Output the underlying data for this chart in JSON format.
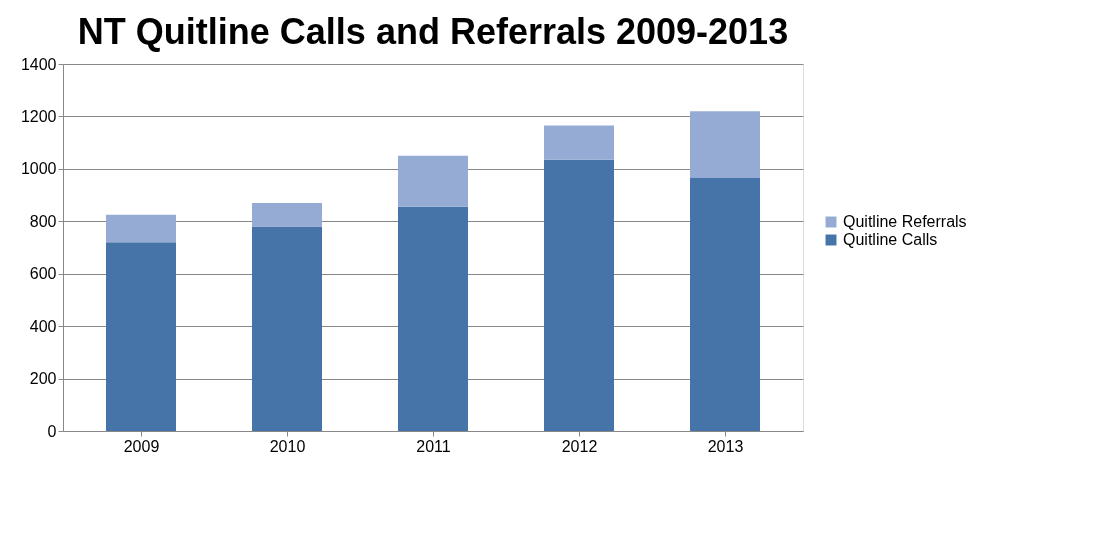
{
  "chart_data": {
    "type": "bar",
    "title": "NT Quitline Calls and Referrals 2009-2013",
    "categories": [
      "2009",
      "2010",
      "2011",
      "2012",
      "2013"
    ],
    "stacked": true,
    "series": [
      {
        "name": "Quitline Calls",
        "color": "#4674a9",
        "values": [
          720,
          780,
          855,
          1035,
          965
        ]
      },
      {
        "name": "Quitline Referrals",
        "color": "#95abd3",
        "values": [
          105,
          90,
          195,
          130,
          255
        ]
      }
    ],
    "ylim": [
      0,
      1400
    ],
    "yticks": [
      0,
      200,
      400,
      600,
      800,
      1000,
      1200,
      1400
    ],
    "grid": "y",
    "legend": "right"
  }
}
